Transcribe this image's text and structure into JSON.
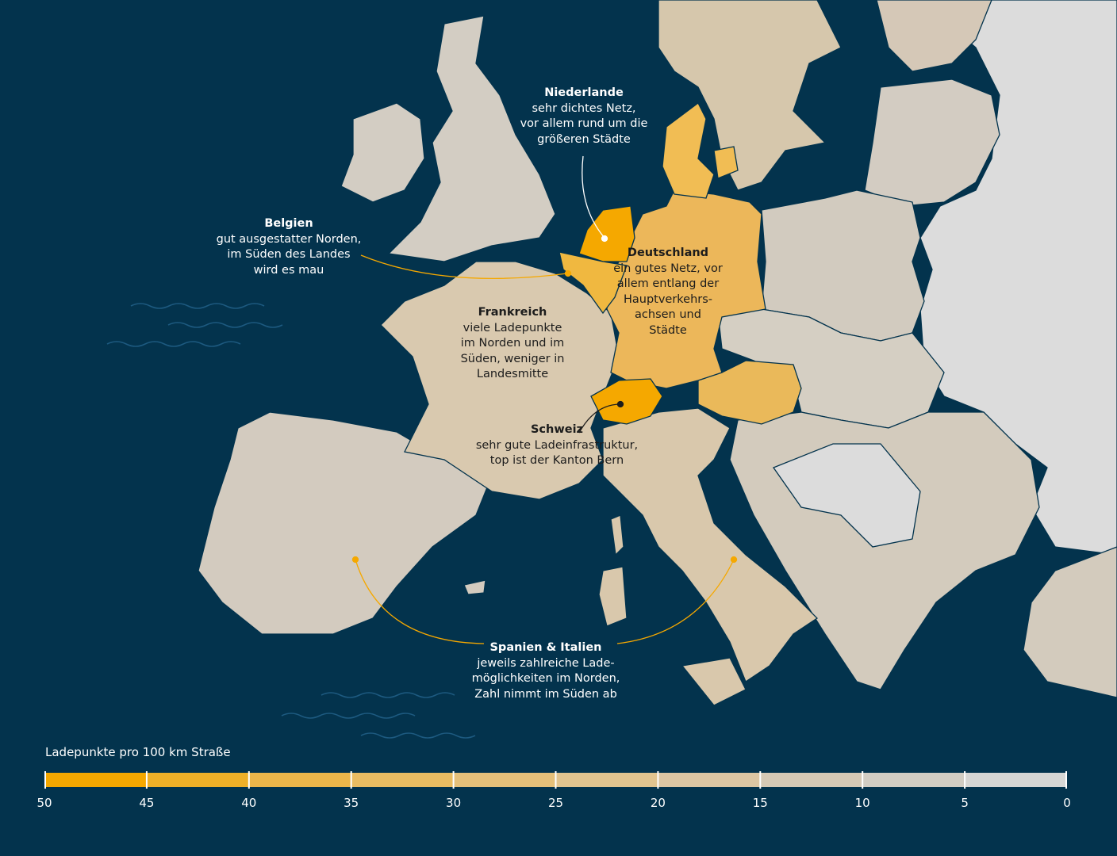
{
  "colors": {
    "sea": "#03334d",
    "leader_line": "#f5a800",
    "level_50": "#f5a800",
    "level_40": "#ecb64a",
    "level_30": "#e3c38b",
    "level_20": "#d9c4a6",
    "level_15": "#d4c9bb",
    "level_10": "#cfc9bc",
    "level_5": "#d7d6d4",
    "level_0": "#dcdcdc"
  },
  "annotations": {
    "niederlande": {
      "title": "Niederlande",
      "lines": [
        "sehr dichtes Netz,",
        "vor allem rund um die",
        "größeren Städte"
      ]
    },
    "belgien": {
      "title": "Belgien",
      "lines": [
        "gut ausgestatter Norden,",
        "im Süden des Landes",
        "wird es mau"
      ]
    },
    "deutschland": {
      "title": "Deutschland",
      "lines": [
        "ein gutes Netz, vor",
        "allem entlang der",
        "Hauptverkehrs-",
        "achsen und",
        "Städte"
      ]
    },
    "frankreich": {
      "title": "Frankreich",
      "lines": [
        "viele Ladepunkte",
        "im Norden und im",
        "Süden, weniger in",
        "Landesmitte"
      ]
    },
    "schweiz": {
      "title": "Schweiz",
      "lines": [
        "sehr gute Ladeinfrastruktur,",
        "top ist der Kanton Bern"
      ]
    },
    "spanien_italien": {
      "title": "Spanien & Italien",
      "lines": [
        "jeweils zahlreiche Lade-",
        "möglichkeiten im Norden,",
        "Zahl nimmt im Süden ab"
      ]
    }
  },
  "legend": {
    "title": "Ladepunkte pro 100  km Straße",
    "ticks": [
      "50",
      "45",
      "40",
      "35",
      "30",
      "25",
      "20",
      "15",
      "10",
      "5",
      "0"
    ],
    "segment_colors": [
      "#f5a800",
      "#efb028",
      "#ecb64a",
      "#e9bc62",
      "#e5c07a",
      "#e1c48f",
      "#dcc6a3",
      "#d6c9b5",
      "#d2cdc3",
      "#d6d6d4"
    ]
  }
}
